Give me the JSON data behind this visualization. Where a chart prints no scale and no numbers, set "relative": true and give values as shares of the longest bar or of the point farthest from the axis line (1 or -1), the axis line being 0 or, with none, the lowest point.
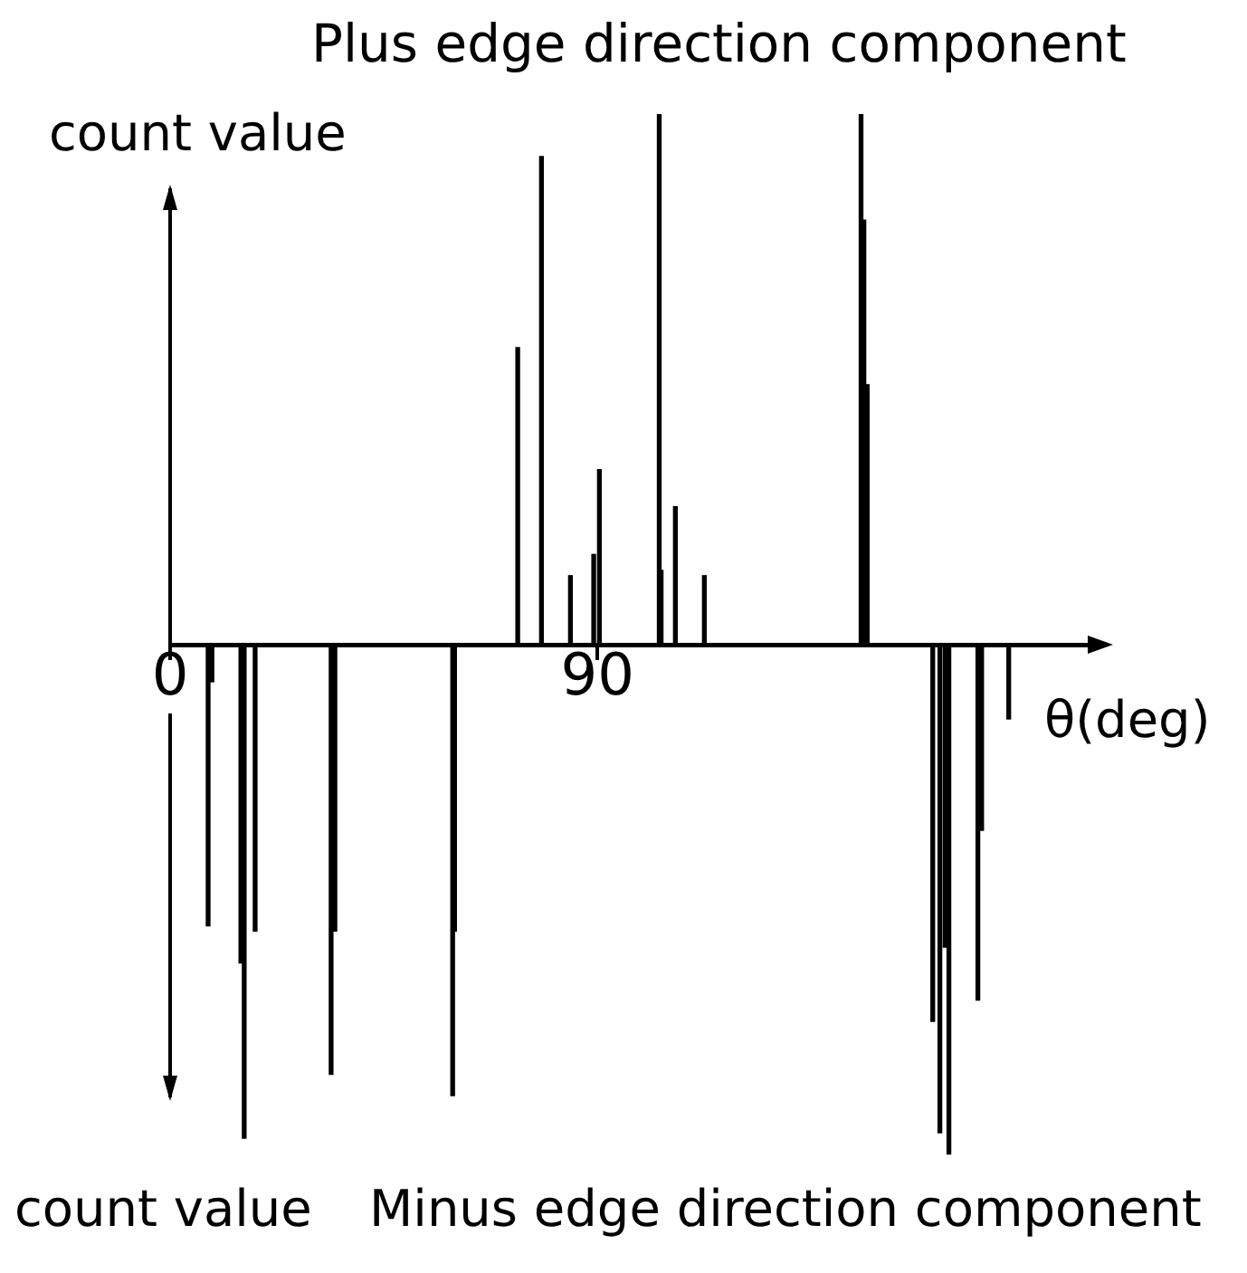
{
  "chart_data": {
    "type": "bar",
    "relative": true,
    "ylabel": "count value",
    "xlabel": "θ(deg)",
    "annotations": [
      "Plus edge direction component",
      "count value",
      "Minus edge direction component"
    ],
    "x": [
      8.0,
      8.8,
      14.9,
      15.6,
      17.9,
      33.9,
      34.7,
      59.5,
      59.9,
      73.2,
      78.2,
      84.3,
      89.2,
      90.4,
      103.0,
      103.4,
      106.4,
      112.5,
      145.5,
      146.1,
      146.8,
      160.6,
      162.1,
      163.2,
      164.0,
      170.1,
      170.9,
      176.6
    ],
    "values": [
      -0.53,
      -0.07,
      -0.6,
      -0.93,
      -0.54,
      -0.81,
      -0.54,
      -0.85,
      -0.54,
      0.56,
      0.92,
      0.13,
      0.17,
      0.33,
      1,
      0.14,
      0.26,
      0.13,
      1,
      0.8,
      0.49,
      -0.71,
      -0.92,
      -0.57,
      -0.96,
      -0.67,
      -0.35,
      -0.14
    ],
    "color": "#000000",
    "xlim": [
      0,
      194
    ],
    "xticks": [
      0,
      90
    ]
  }
}
